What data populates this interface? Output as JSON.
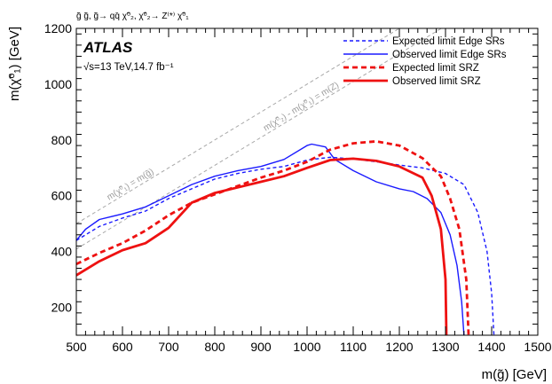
{
  "chart_data": {
    "type": "line",
    "process_label": "g̃ g̃, g̃→ qq̄ χ̃⁰₂, χ̃⁰₂→ Z⁽*⁾ χ̃⁰₁",
    "experiment": "ATLAS",
    "energy_lumi": "√s=13 TeV,14.7 fb⁻¹",
    "xlabel": "m(g̃) [GeV]",
    "ylabel": "m(χ̃⁰₁) [GeV]",
    "xlim": [
      500,
      1500
    ],
    "ylim": [
      100,
      1200
    ],
    "xticks": [
      500,
      600,
      700,
      800,
      900,
      1000,
      1100,
      1200,
      1300,
      1400,
      1500
    ],
    "yticks": [
      200,
      400,
      600,
      800,
      1000,
      1200
    ],
    "legend_position": "top-right",
    "diagonal_lines": [
      {
        "label": "m(χ̃⁰₁) = m(g̃)",
        "offset": 0
      },
      {
        "label": "m(χ̃⁰₂) - m(χ̃⁰₁) = m(Z)",
        "offset": 91
      }
    ],
    "series": [
      {
        "name": "Expected limit Edge SRs",
        "color": "#1a1aff",
        "style": "dashed",
        "width": "thin",
        "points": [
          [
            500,
            440
          ],
          [
            550,
            490
          ],
          [
            600,
            520
          ],
          [
            650,
            545
          ],
          [
            700,
            590
          ],
          [
            750,
            625
          ],
          [
            800,
            660
          ],
          [
            850,
            680
          ],
          [
            900,
            695
          ],
          [
            950,
            705
          ],
          [
            1000,
            728
          ],
          [
            1050,
            738
          ],
          [
            1100,
            732
          ],
          [
            1150,
            722
          ],
          [
            1200,
            710
          ],
          [
            1250,
            700
          ],
          [
            1300,
            680
          ],
          [
            1340,
            640
          ],
          [
            1370,
            540
          ],
          [
            1390,
            400
          ],
          [
            1400,
            250
          ],
          [
            1405,
            100
          ]
        ]
      },
      {
        "name": "Observed limit Edge SRs",
        "color": "#1a1aff",
        "style": "solid",
        "width": "thin",
        "points": [
          [
            500,
            440
          ],
          [
            520,
            480
          ],
          [
            550,
            515
          ],
          [
            600,
            535
          ],
          [
            650,
            560
          ],
          [
            700,
            600
          ],
          [
            750,
            640
          ],
          [
            800,
            670
          ],
          [
            850,
            690
          ],
          [
            900,
            705
          ],
          [
            950,
            730
          ],
          [
            1000,
            780
          ],
          [
            1010,
            785
          ],
          [
            1040,
            775
          ],
          [
            1060,
            730
          ],
          [
            1100,
            690
          ],
          [
            1150,
            650
          ],
          [
            1200,
            625
          ],
          [
            1230,
            615
          ],
          [
            1260,
            590
          ],
          [
            1290,
            540
          ],
          [
            1310,
            460
          ],
          [
            1325,
            350
          ],
          [
            1335,
            220
          ],
          [
            1340,
            100
          ]
        ]
      },
      {
        "name": "Expected limit SRZ",
        "color": "#ee1111",
        "style": "dashed",
        "width": "thick",
        "points": [
          [
            500,
            355
          ],
          [
            550,
            395
          ],
          [
            600,
            430
          ],
          [
            650,
            475
          ],
          [
            700,
            530
          ],
          [
            750,
            575
          ],
          [
            800,
            605
          ],
          [
            850,
            635
          ],
          [
            900,
            665
          ],
          [
            950,
            690
          ],
          [
            1000,
            722
          ],
          [
            1050,
            765
          ],
          [
            1100,
            788
          ],
          [
            1150,
            795
          ],
          [
            1200,
            780
          ],
          [
            1250,
            735
          ],
          [
            1290,
            670
          ],
          [
            1310,
            590
          ],
          [
            1330,
            480
          ],
          [
            1345,
            300
          ],
          [
            1350,
            100
          ]
        ]
      },
      {
        "name": "Observed limit SRZ",
        "color": "#ee1111",
        "style": "solid",
        "width": "thick",
        "points": [
          [
            500,
            315
          ],
          [
            550,
            365
          ],
          [
            600,
            405
          ],
          [
            650,
            430
          ],
          [
            700,
            485
          ],
          [
            750,
            575
          ],
          [
            800,
            610
          ],
          [
            850,
            630
          ],
          [
            900,
            650
          ],
          [
            950,
            670
          ],
          [
            1000,
            700
          ],
          [
            1050,
            728
          ],
          [
            1100,
            733
          ],
          [
            1150,
            725
          ],
          [
            1200,
            705
          ],
          [
            1250,
            665
          ],
          [
            1270,
            600
          ],
          [
            1290,
            480
          ],
          [
            1300,
            300
          ],
          [
            1302,
            100
          ]
        ]
      }
    ]
  }
}
